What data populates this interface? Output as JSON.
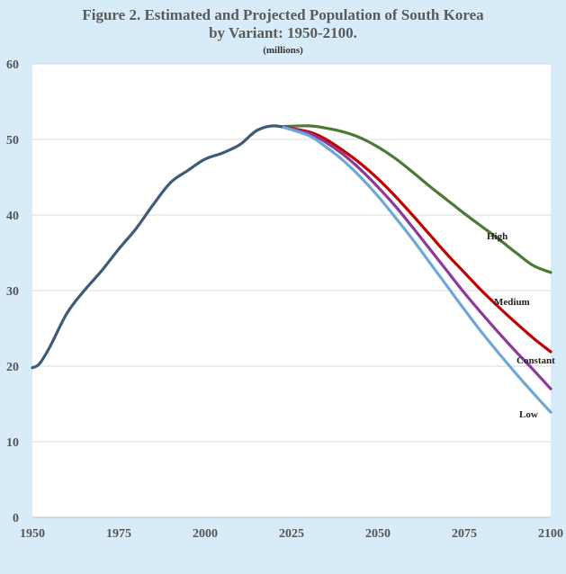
{
  "chart_data": {
    "type": "line",
    "title_line1": "Figure 2. Estimated and Projected Population of South Korea",
    "title_line2": "by Variant: 1950-2100.",
    "subtitle": "(millions)",
    "xlabel": "",
    "ylabel": "",
    "xlim": [
      1950,
      2100
    ],
    "ylim": [
      0,
      60
    ],
    "xticks": [
      1950,
      1975,
      2000,
      2025,
      2050,
      2075,
      2100
    ],
    "yticks": [
      0,
      10,
      20,
      30,
      40,
      50,
      60
    ],
    "grid": "horizontal",
    "colors": {
      "background": "#d7ebf8",
      "plot_background": "#ffffff",
      "grid": "#d9d9d9",
      "estimates": "#3d5a76",
      "high": "#4c7a35",
      "medium": "#c00000",
      "constant": "#8b3a9a",
      "low": "#6fa8d6"
    },
    "series": [
      {
        "key": "estimates",
        "x": [
          1950,
          1952,
          1955,
          1960,
          1965,
          1970,
          1975,
          1980,
          1985,
          1990,
          1995,
          2000,
          2005,
          2010,
          2013,
          2015,
          2018,
          2020,
          2022
        ],
        "y": [
          19.8,
          20.3,
          22.5,
          27.0,
          30.0,
          32.6,
          35.5,
          38.2,
          41.4,
          44.3,
          45.9,
          47.4,
          48.2,
          49.3,
          50.5,
          51.2,
          51.7,
          51.8,
          51.7
        ]
      },
      {
        "name": "High",
        "key": "high",
        "x": [
          2022,
          2030,
          2035,
          2040,
          2045,
          2050,
          2055,
          2060,
          2065,
          2070,
          2075,
          2080,
          2085,
          2090,
          2095,
          2100
        ],
        "y": [
          51.7,
          51.8,
          51.5,
          51.0,
          50.2,
          49.0,
          47.5,
          45.7,
          43.8,
          42.0,
          40.2,
          38.5,
          36.8,
          35.0,
          33.3,
          32.4
        ]
      },
      {
        "name": "Medium",
        "key": "medium",
        "x": [
          2022,
          2030,
          2035,
          2040,
          2045,
          2050,
          2055,
          2060,
          2065,
          2070,
          2075,
          2080,
          2085,
          2090,
          2095,
          2100
        ],
        "y": [
          51.7,
          51.0,
          50.0,
          48.5,
          46.8,
          44.8,
          42.5,
          40.0,
          37.4,
          34.8,
          32.4,
          30.0,
          27.8,
          25.7,
          23.7,
          21.9
        ]
      },
      {
        "name": "Constant",
        "key": "constant",
        "x": [
          2022,
          2030,
          2035,
          2040,
          2045,
          2050,
          2055,
          2060,
          2065,
          2070,
          2075,
          2080,
          2085,
          2090,
          2095,
          2100
        ],
        "y": [
          51.7,
          50.8,
          49.6,
          48.0,
          46.0,
          43.7,
          41.2,
          38.4,
          35.5,
          32.6,
          29.7,
          27.0,
          24.4,
          21.9,
          19.5,
          17.0
        ]
      },
      {
        "name": "Low",
        "key": "low",
        "x": [
          2022,
          2030,
          2035,
          2040,
          2045,
          2050,
          2055,
          2060,
          2065,
          2070,
          2075,
          2080,
          2085,
          2090,
          2095,
          2100
        ],
        "y": [
          51.7,
          50.5,
          49.0,
          47.2,
          45.0,
          42.5,
          39.7,
          36.8,
          33.7,
          30.6,
          27.5,
          24.5,
          21.7,
          19.0,
          16.4,
          13.9
        ]
      }
    ]
  }
}
